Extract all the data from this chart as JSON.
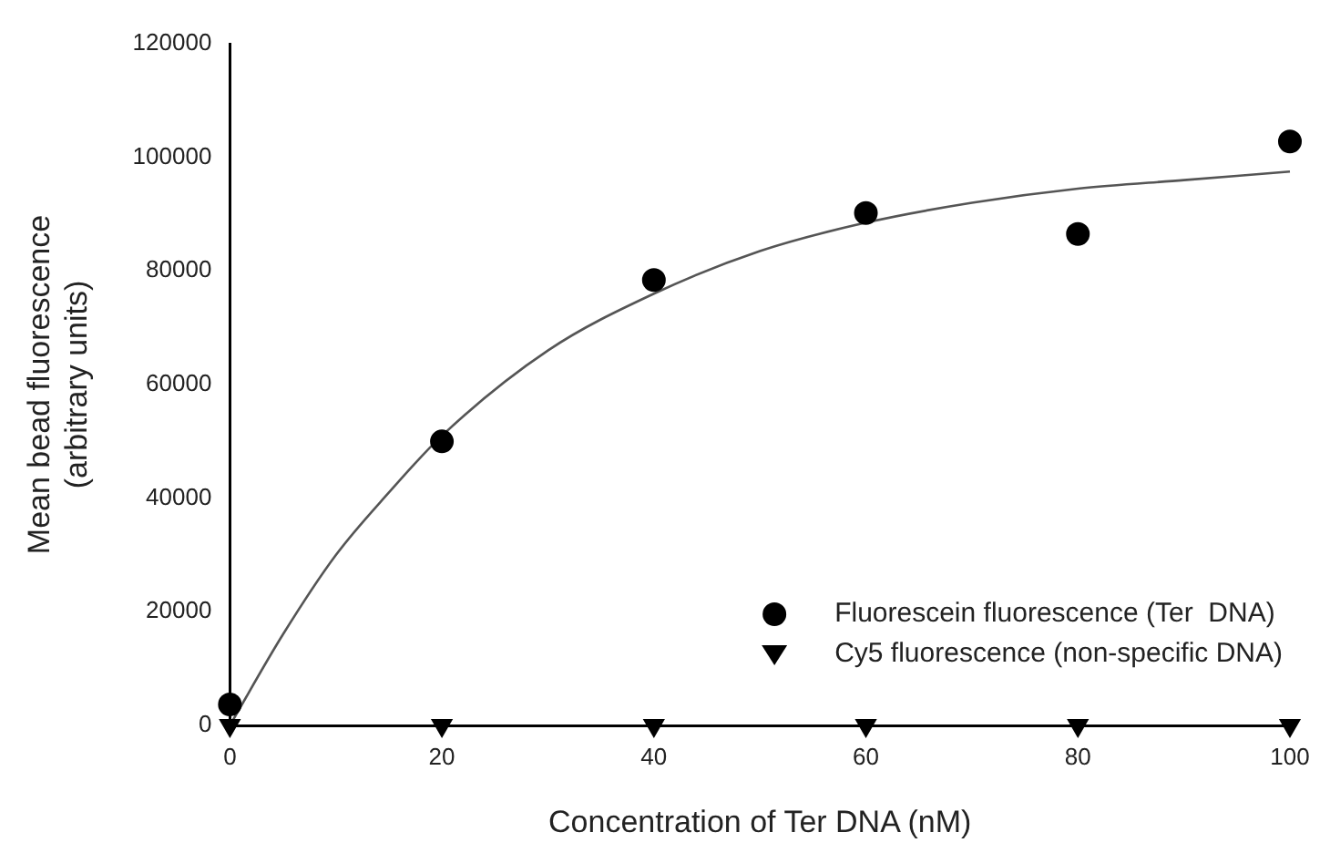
{
  "chart_data": {
    "type": "scatter",
    "xlabel": "Concentration of Ter DNA (nM)",
    "ylabel": "Mean bead fluorescence\n(arbitrary units)",
    "x": [
      0,
      20,
      40,
      60,
      80,
      100
    ],
    "series": [
      {
        "name": "Fluorescein fluorescence (Ter  DNA)",
        "color": "#000000",
        "marker": "circle",
        "values": [
          3700,
          50000,
          78400,
          90200,
          86500,
          102800
        ]
      },
      {
        "name": "Cy5 fluorescence (non-specific DNA)",
        "color": "#000000",
        "marker": "triangle",
        "values": [
          0,
          0,
          0,
          0,
          0,
          0
        ]
      },
      {
        "type": "line",
        "color": "#555555",
        "marker": "none",
        "x": [
          0,
          5,
          10,
          15,
          20,
          30,
          40,
          50,
          60,
          70,
          80,
          90,
          100
        ],
        "values": [
          0,
          16000,
          30000,
          41000,
          51000,
          66000,
          76000,
          83500,
          88500,
          92000,
          94500,
          96000,
          97500
        ]
      }
    ],
    "xlim": [
      0,
      100
    ],
    "xticks": [
      0,
      20,
      40,
      60,
      80,
      100
    ],
    "ylim": [
      0,
      120000
    ],
    "yticks": [
      0,
      20000,
      40000,
      60000,
      80000,
      100000,
      120000
    ],
    "grid": false,
    "legend": "bottom right"
  }
}
